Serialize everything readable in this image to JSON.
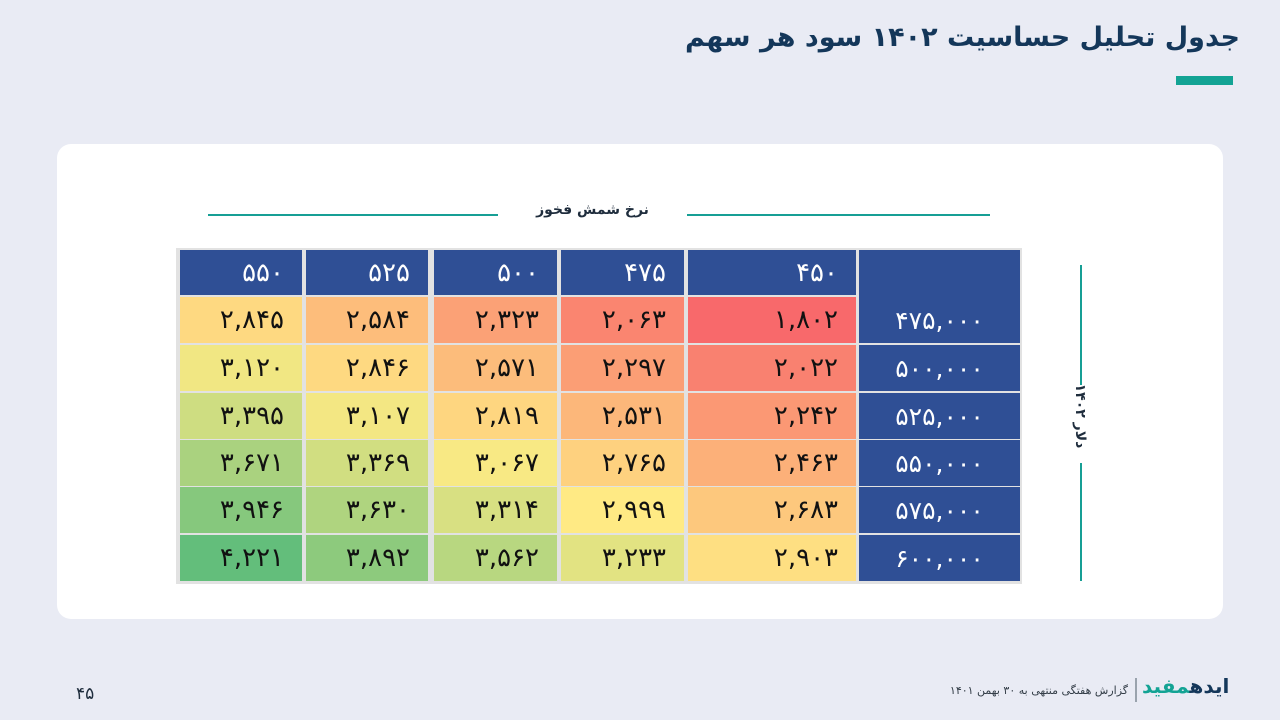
{
  "slide": {
    "title": "جدول تحلیل حساسیت ۱۴۰۲ سود هر سهم",
    "page_number": "۴۵"
  },
  "footer": {
    "logo_part1": "ایده",
    "logo_part2": "مفید",
    "caption": "گزارش هفتگی منتهی به ۳۰ بهمن ۱۴۰۱"
  },
  "colors": {
    "background": "#e9ebf4",
    "header_blue": "#2f4f95",
    "accent_teal": "#13a394",
    "low": "#f8696b",
    "mid": "#ffeb84",
    "high": "#63be7b"
  },
  "chart_data": {
    "type": "table",
    "col_axis_title": "نرخ شمش فخوز",
    "row_axis_title": "دلار ۱۴۰۲",
    "columns": [
      "۴۵۰",
      "۴۷۵",
      "۵۰۰",
      "۵۲۵",
      "۵۵۰"
    ],
    "rows": [
      "۴۷۵,۰۰۰",
      "۵۰۰,۰۰۰",
      "۵۲۵,۰۰۰",
      "۵۵۰,۰۰۰",
      "۵۷۵,۰۰۰",
      "۶۰۰,۰۰۰"
    ],
    "values": [
      [
        1802,
        2063,
        2323,
        2584,
        2845
      ],
      [
        2022,
        2297,
        2571,
        2846,
        3120
      ],
      [
        2242,
        2531,
        2819,
        3107,
        3395
      ],
      [
        2463,
        2765,
        3067,
        3369,
        3671
      ],
      [
        2683,
        2999,
        3314,
        3630,
        3946
      ],
      [
        2903,
        3233,
        3562,
        3892,
        4221
      ]
    ],
    "value_labels": [
      [
        "۱,۸۰۲",
        "۲,۰۶۳",
        "۲,۳۲۳",
        "۲,۵۸۴",
        "۲,۸۴۵"
      ],
      [
        "۲,۰۲۲",
        "۲,۲۹۷",
        "۲,۵۷۱",
        "۲,۸۴۶",
        "۳,۱۲۰"
      ],
      [
        "۲,۲۴۲",
        "۲,۵۳۱",
        "۲,۸۱۹",
        "۳,۱۰۷",
        "۳,۳۹۵"
      ],
      [
        "۲,۴۶۳",
        "۲,۷۶۵",
        "۳,۰۶۷",
        "۳,۳۶۹",
        "۳,۶۷۱"
      ],
      [
        "۲,۶۸۳",
        "۲,۹۹۹",
        "۳,۳۱۴",
        "۳,۶۳۰",
        "۳,۹۴۶"
      ],
      [
        "۲,۹۰۳",
        "۳,۲۳۳",
        "۳,۵۶۲",
        "۳,۸۹۲",
        "۴,۲۲۱"
      ]
    ]
  }
}
